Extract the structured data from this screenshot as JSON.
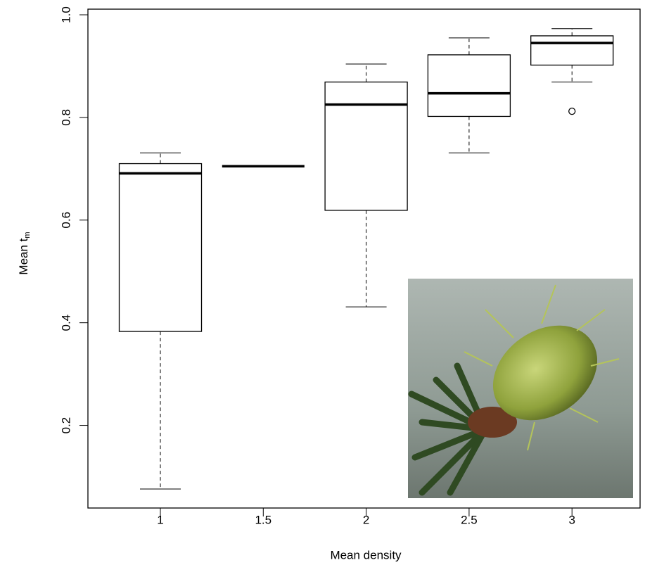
{
  "chart_data": {
    "type": "boxplot",
    "x_label": "Mean density",
    "y_label": {
      "text": "Mean t",
      "subscript": "m"
    },
    "categories": [
      "1",
      "1.5",
      "2",
      "2.5",
      "3"
    ],
    "min": [
      0.076,
      0.705,
      0.431,
      0.731,
      0.869
    ],
    "q1": [
      0.383,
      0.705,
      0.619,
      0.802,
      0.902
    ],
    "median": [
      0.691,
      0.705,
      0.825,
      0.847,
      0.945
    ],
    "q3": [
      0.71,
      0.705,
      0.869,
      0.922,
      0.959
    ],
    "max": [
      0.731,
      0.705,
      0.904,
      0.955,
      0.973
    ],
    "outliers": [
      [],
      [],
      [],
      [],
      [
        0.812
      ]
    ],
    "color": "#000000",
    "box_fill": "#ffffff",
    "ylim": [
      0.039,
      1.011
    ],
    "yticks": [
      0.2,
      0.4,
      0.6,
      0.8,
      {
        "value": 1,
        "label": "1.0"
      }
    ]
  }
}
